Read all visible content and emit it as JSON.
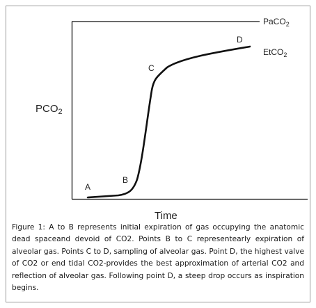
{
  "diagram": {
    "y_axis_label": "PCO",
    "y_axis_label_sub": "2",
    "x_axis_label": "Time",
    "paco2_label": "PaCO",
    "paco2_label_sub": "2",
    "etco2_label": "EtCO",
    "etco2_label_sub": "2",
    "points": {
      "a": "A",
      "b": "B",
      "c": "C",
      "d": "D"
    }
  },
  "caption": {
    "text": "Figure 1:  A to B represents initial expiration of gas occupying the anatomic dead spaceand devoid of CO2. Points B to C representearly expiration of alveolar gas. Points C to D, sampling of alveolar gas. Point D, the highest valve of CO2 or end tidal CO2-provides the best approximation of arterial CO2 and reflection of alveolar gas. Following point D, a steep drop occurs as inspiration begins."
  }
}
